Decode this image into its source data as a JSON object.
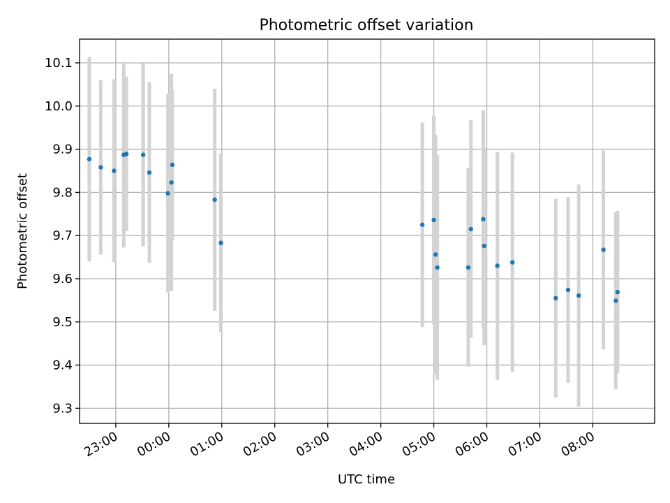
{
  "chart_data": {
    "type": "scatter",
    "title": "Photometric offset variation",
    "xlabel": "UTC time",
    "ylabel": "Photometric offset",
    "xlim": [
      "22:19",
      "09:10"
    ],
    "ylim": [
      9.265,
      10.155
    ],
    "x_ticks": [
      "23:00",
      "00:00",
      "01:00",
      "02:00",
      "03:00",
      "04:00",
      "05:00",
      "06:00",
      "07:00",
      "08:00"
    ],
    "y_ticks": [
      "9.3",
      "9.4",
      "9.5",
      "9.6",
      "9.7",
      "9.8",
      "9.9",
      "10.0",
      "10.1"
    ],
    "grid": true,
    "colors": {
      "point": "#1f77b4",
      "errorbar": "#d3d3d3",
      "grid": "#b0b0b0"
    },
    "points": [
      {
        "x": "22:30",
        "y": 9.877,
        "err": 0.237
      },
      {
        "x": "22:43",
        "y": 9.858,
        "err": 0.202
      },
      {
        "x": "22:58",
        "y": 9.85,
        "err": 0.212
      },
      {
        "x": "23:09",
        "y": 9.887,
        "err": 0.215
      },
      {
        "x": "23:12",
        "y": 9.889,
        "err": 0.179
      },
      {
        "x": "23:31",
        "y": 9.887,
        "err": 0.212
      },
      {
        "x": "23:38",
        "y": 9.846,
        "err": 0.209
      },
      {
        "x": "23:59",
        "y": 9.798,
        "err": 0.23
      },
      {
        "x": "00:03",
        "y": 9.823,
        "err": 0.252
      },
      {
        "x": "00:04",
        "y": 9.864,
        "err": 0.174
      },
      {
        "x": "00:52",
        "y": 9.783,
        "err": 0.257
      },
      {
        "x": "00:59",
        "y": 9.683,
        "err": 0.207
      },
      {
        "x": "04:47",
        "y": 9.725,
        "err": 0.237
      },
      {
        "x": "05:00",
        "y": 9.736,
        "err": 0.242
      },
      {
        "x": "05:02",
        "y": 9.656,
        "err": 0.278
      },
      {
        "x": "05:04",
        "y": 9.626,
        "err": 0.26
      },
      {
        "x": "05:39",
        "y": 9.626,
        "err": 0.23
      },
      {
        "x": "05:42",
        "y": 9.715,
        "err": 0.252
      },
      {
        "x": "05:56",
        "y": 9.738,
        "err": 0.252
      },
      {
        "x": "05:57",
        "y": 9.676,
        "err": 0.23
      },
      {
        "x": "06:12",
        "y": 9.63,
        "err": 0.264
      },
      {
        "x": "06:29",
        "y": 9.638,
        "err": 0.254
      },
      {
        "x": "07:18",
        "y": 9.555,
        "err": 0.23
      },
      {
        "x": "07:32",
        "y": 9.574,
        "err": 0.215
      },
      {
        "x": "07:44",
        "y": 9.561,
        "err": 0.257
      },
      {
        "x": "08:12",
        "y": 9.667,
        "err": 0.23
      },
      {
        "x": "08:26",
        "y": 9.549,
        "err": 0.205
      },
      {
        "x": "08:28",
        "y": 9.569,
        "err": 0.188
      }
    ]
  }
}
